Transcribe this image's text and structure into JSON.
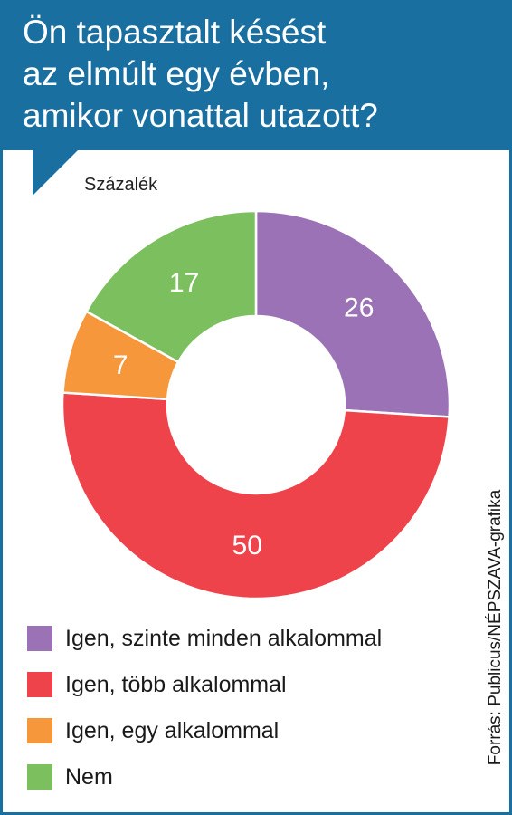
{
  "title": {
    "lines": [
      "Ön tapasztalt késést",
      "az elmúlt egy évben,",
      "amikor vonattal utazott?"
    ]
  },
  "unit_label": "Százalék",
  "source": "Forrás: Publicus/NÉPSZAVA-grafika",
  "colors": {
    "header": "#1a6fa1",
    "label_text": "#ffffff"
  },
  "chart_data": {
    "type": "pie",
    "donut": true,
    "title": "Ön tapasztalt késést az elmúlt egy évben, amikor vonattal utazott?",
    "unit": "Százalék",
    "legend_position": "bottom-left",
    "categories": [
      "Igen, szinte minden alkalommal",
      "Igen, több alkalommal",
      "Igen, egy alkalommal",
      "Nem"
    ],
    "values": [
      26,
      50,
      7,
      17
    ],
    "value_labels": [
      "26",
      "50",
      "7",
      "17"
    ],
    "colors": [
      "#9b72b5",
      "#ef434c",
      "#f5973a",
      "#7cbf5f"
    ]
  }
}
